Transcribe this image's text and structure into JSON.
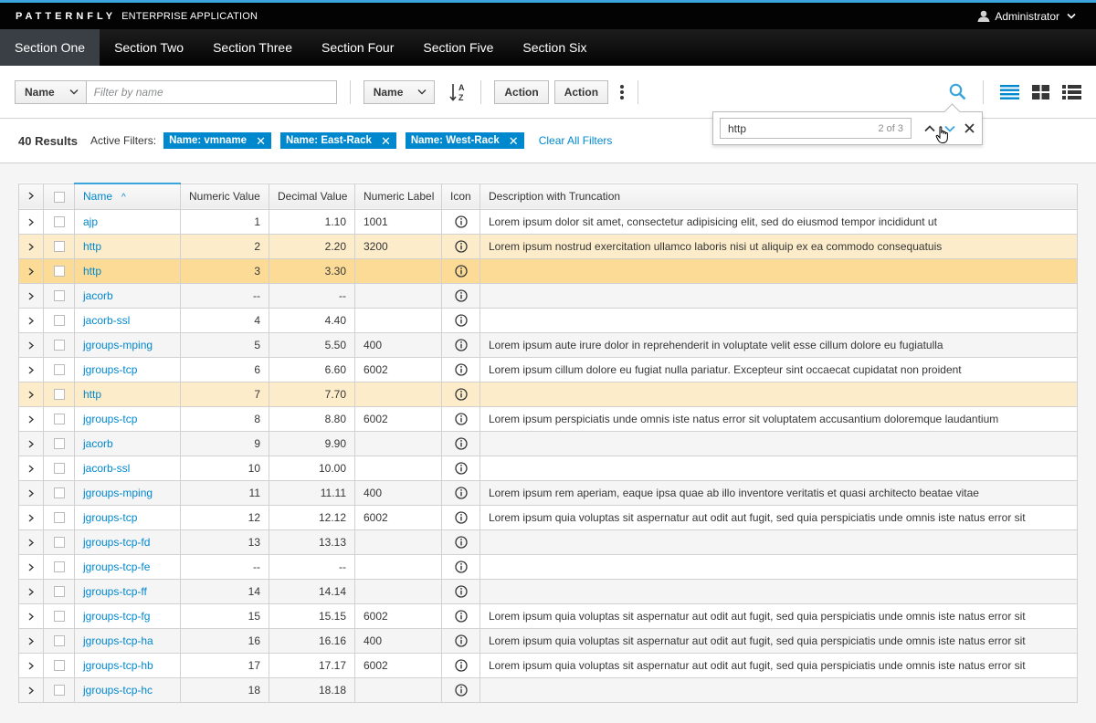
{
  "masthead": {
    "brand_name": "PATTERNFLY",
    "brand_sub": "ENTERPRISE APPLICATION",
    "user": "Administrator"
  },
  "nav": {
    "items": [
      {
        "label": "Section One"
      },
      {
        "label": "Section Two"
      },
      {
        "label": "Section Three"
      },
      {
        "label": "Section Four"
      },
      {
        "label": "Section Five"
      },
      {
        "label": "Section Six"
      }
    ]
  },
  "toolbar": {
    "filter_field": "Name",
    "filter_placeholder": "Filter by name",
    "sort_field": "Name",
    "action1": "Action",
    "action2": "Action"
  },
  "find": {
    "query": "http",
    "count": "2 of 3"
  },
  "filters": {
    "result_count": "40 Results",
    "active_label": "Active Filters:",
    "chips": [
      "Name: vmname",
      "Name: East-Rack",
      "Name: West-Rack"
    ],
    "clear_all": "Clear All Filters"
  },
  "table": {
    "headers": {
      "name": "Name",
      "numeric_value": "Numeric Value",
      "decimal_value": "Decimal Value",
      "numeric_label": "Numeric Label",
      "icon": "Icon",
      "description": "Description with Truncation"
    },
    "rows": [
      {
        "name": "ajp",
        "num": "1",
        "dec": "1.10",
        "label": "1001",
        "desc": "Lorem ipsum dolor sit amet, consectetur adipisicing elit, sed do eiusmod tempor incididunt ut",
        "state": ""
      },
      {
        "name": "http",
        "num": "2",
        "dec": "2.20",
        "label": "3200",
        "desc": "Lorem ipsum nostrud exercitation ullamco laboris nisi ut aliquip ex ea commodo consequatuis",
        "state": "hl"
      },
      {
        "name": "http",
        "num": "3",
        "dec": "3.30",
        "label": "",
        "desc": "",
        "state": "hl-cur"
      },
      {
        "name": "jacorb",
        "num": "--",
        "dec": "--",
        "label": "",
        "desc": "",
        "state": ""
      },
      {
        "name": "jacorb-ssl",
        "num": "4",
        "dec": "4.40",
        "label": "",
        "desc": "",
        "state": ""
      },
      {
        "name": "jgroups-mping",
        "num": "5",
        "dec": "5.50",
        "label": "400",
        "desc": "Lorem ipsum aute irure dolor in reprehenderit in voluptate velit esse cillum dolore eu fugiatulla",
        "state": ""
      },
      {
        "name": "jgroups-tcp",
        "num": "6",
        "dec": "6.60",
        "label": "6002",
        "desc": "Lorem ipsum cillum dolore eu fugiat nulla pariatur. Excepteur sint occaecat cupidatat non proident",
        "state": ""
      },
      {
        "name": "http",
        "num": "7",
        "dec": "7.70",
        "label": "",
        "desc": "",
        "state": "hl"
      },
      {
        "name": "jgroups-tcp",
        "num": "8",
        "dec": "8.80",
        "label": "6002",
        "desc": "Lorem ipsum perspiciatis unde omnis iste natus error sit voluptatem accusantium doloremque laudantium",
        "state": ""
      },
      {
        "name": "jacorb",
        "num": "9",
        "dec": "9.90",
        "label": "",
        "desc": "",
        "state": ""
      },
      {
        "name": "jacorb-ssl",
        "num": "10",
        "dec": "10.00",
        "label": "",
        "desc": "",
        "state": ""
      },
      {
        "name": "jgroups-mping",
        "num": "11",
        "dec": "11.11",
        "label": "400",
        "desc": "Lorem ipsum rem aperiam, eaque ipsa quae ab illo inventore veritatis et quasi architecto beatae vitae",
        "state": ""
      },
      {
        "name": "jgroups-tcp",
        "num": "12",
        "dec": "12.12",
        "label": "6002",
        "desc": "Lorem ipsum quia voluptas sit aspernatur aut odit aut fugit, sed quia perspiciatis unde omnis iste natus error sit",
        "state": ""
      },
      {
        "name": "jgroups-tcp-fd",
        "num": "13",
        "dec": "13.13",
        "label": "",
        "desc": "",
        "state": ""
      },
      {
        "name": "jgroups-tcp-fe",
        "num": "--",
        "dec": "--",
        "label": "",
        "desc": "",
        "state": ""
      },
      {
        "name": "jgroups-tcp-ff",
        "num": "14",
        "dec": "14.14",
        "label": "",
        "desc": "",
        "state": ""
      },
      {
        "name": "jgroups-tcp-fg",
        "num": "15",
        "dec": "15.15",
        "label": "6002",
        "desc": "Lorem ipsum quia voluptas sit aspernatur aut odit aut fugit, sed quia perspiciatis unde omnis iste natus error sit",
        "state": ""
      },
      {
        "name": "jgroups-tcp-ha",
        "num": "16",
        "dec": "16.16",
        "label": "400",
        "desc": "Lorem ipsum quia voluptas sit aspernatur aut odit aut fugit, sed quia perspiciatis unde omnis iste natus error sit",
        "state": ""
      },
      {
        "name": "jgroups-tcp-hb",
        "num": "17",
        "dec": "17.17",
        "label": "6002",
        "desc": "Lorem ipsum quia voluptas sit aspernatur aut odit aut fugit, sed quia perspiciatis unde omnis iste natus error sit",
        "state": ""
      },
      {
        "name": "jgroups-tcp-hc",
        "num": "18",
        "dec": "18.18",
        "label": "",
        "desc": "",
        "state": ""
      }
    ]
  },
  "colors": {
    "accent": "#0088ce",
    "masthead_border": "#39a5dc",
    "highlight": "#fcecca",
    "highlight_current": "#fbdb96"
  }
}
